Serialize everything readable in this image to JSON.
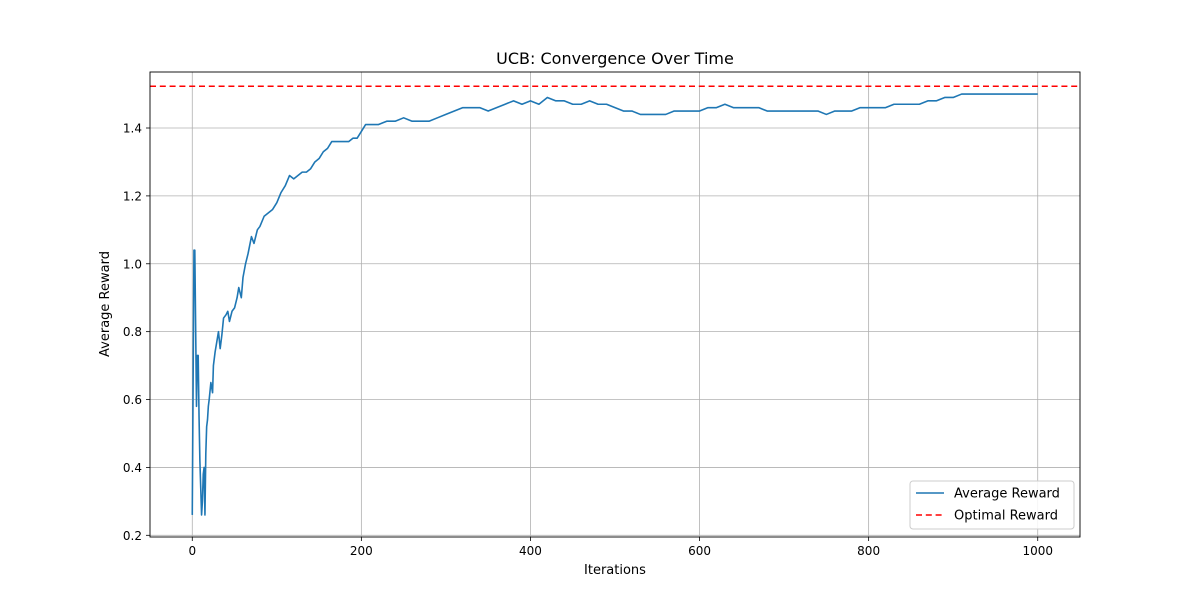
{
  "chart_data": {
    "type": "line",
    "title": "UCB: Convergence Over Time",
    "xlabel": "Iterations",
    "ylabel": "Average Reward",
    "xlim": [
      -50,
      1050
    ],
    "ylim": [
      0.195,
      1.565
    ],
    "x_ticks": [
      0,
      200,
      400,
      600,
      800,
      1000
    ],
    "x_tick_labels": [
      "0",
      "200",
      "400",
      "600",
      "800",
      "1000"
    ],
    "y_ticks": [
      0.2,
      0.4,
      0.6,
      0.8,
      1.0,
      1.2,
      1.4
    ],
    "y_tick_labels": [
      "0.2",
      "0.4",
      "0.6",
      "0.8",
      "1.0",
      "1.2",
      "1.4"
    ],
    "grid": true,
    "legend_position": "lower-right",
    "series": [
      {
        "name": "Average Reward",
        "color": "#1f77b4",
        "style": "solid",
        "x": [
          0,
          2,
          3,
          5,
          6,
          7,
          8,
          9,
          10,
          11,
          12,
          13,
          14,
          15,
          16,
          17,
          18,
          19,
          20,
          22,
          24,
          25,
          27,
          29,
          31,
          33,
          35,
          37,
          40,
          42,
          44,
          47,
          50,
          53,
          55,
          58,
          60,
          63,
          66,
          70,
          73,
          77,
          80,
          85,
          90,
          95,
          100,
          105,
          110,
          115,
          120,
          125,
          130,
          135,
          140,
          145,
          150,
          155,
          160,
          165,
          170,
          175,
          180,
          185,
          190,
          195,
          200,
          205,
          210,
          215,
          220,
          230,
          240,
          250,
          260,
          270,
          280,
          290,
          300,
          310,
          320,
          330,
          340,
          350,
          360,
          370,
          380,
          390,
          400,
          410,
          420,
          430,
          440,
          450,
          460,
          470,
          480,
          490,
          500,
          510,
          520,
          530,
          540,
          550,
          560,
          570,
          580,
          590,
          600,
          610,
          620,
          630,
          640,
          650,
          660,
          670,
          680,
          690,
          700,
          710,
          720,
          730,
          740,
          750,
          760,
          770,
          780,
          790,
          800,
          810,
          820,
          830,
          840,
          850,
          860,
          870,
          880,
          890,
          900,
          910,
          920,
          930,
          940,
          950,
          960,
          970,
          980,
          990,
          1000
        ],
        "y": [
          0.26,
          1.04,
          1.04,
          0.58,
          0.73,
          0.73,
          0.55,
          0.42,
          0.34,
          0.26,
          0.3,
          0.38,
          0.4,
          0.26,
          0.44,
          0.52,
          0.54,
          0.58,
          0.6,
          0.65,
          0.62,
          0.7,
          0.74,
          0.77,
          0.8,
          0.75,
          0.79,
          0.84,
          0.85,
          0.86,
          0.83,
          0.86,
          0.87,
          0.9,
          0.93,
          0.9,
          0.96,
          1.0,
          1.03,
          1.08,
          1.06,
          1.1,
          1.11,
          1.14,
          1.15,
          1.16,
          1.18,
          1.21,
          1.23,
          1.26,
          1.25,
          1.26,
          1.27,
          1.27,
          1.28,
          1.3,
          1.31,
          1.33,
          1.34,
          1.36,
          1.36,
          1.36,
          1.36,
          1.36,
          1.37,
          1.37,
          1.39,
          1.41,
          1.41,
          1.41,
          1.41,
          1.42,
          1.42,
          1.43,
          1.42,
          1.42,
          1.42,
          1.43,
          1.44,
          1.45,
          1.46,
          1.46,
          1.46,
          1.45,
          1.46,
          1.47,
          1.48,
          1.47,
          1.48,
          1.47,
          1.49,
          1.48,
          1.48,
          1.47,
          1.47,
          1.48,
          1.47,
          1.47,
          1.46,
          1.45,
          1.45,
          1.44,
          1.44,
          1.44,
          1.44,
          1.45,
          1.45,
          1.45,
          1.45,
          1.46,
          1.46,
          1.47,
          1.46,
          1.46,
          1.46,
          1.46,
          1.45,
          1.45,
          1.45,
          1.45,
          1.45,
          1.45,
          1.45,
          1.44,
          1.45,
          1.45,
          1.45,
          1.46,
          1.46,
          1.46,
          1.46,
          1.47,
          1.47,
          1.47,
          1.47,
          1.48,
          1.48,
          1.49,
          1.49,
          1.5,
          1.5,
          1.5,
          1.5,
          1.5,
          1.5,
          1.5,
          1.5,
          1.5,
          1.5
        ]
      },
      {
        "name": "Optimal Reward",
        "color": "#ff0000",
        "style": "dashed",
        "hline_y": 1.523
      }
    ]
  }
}
